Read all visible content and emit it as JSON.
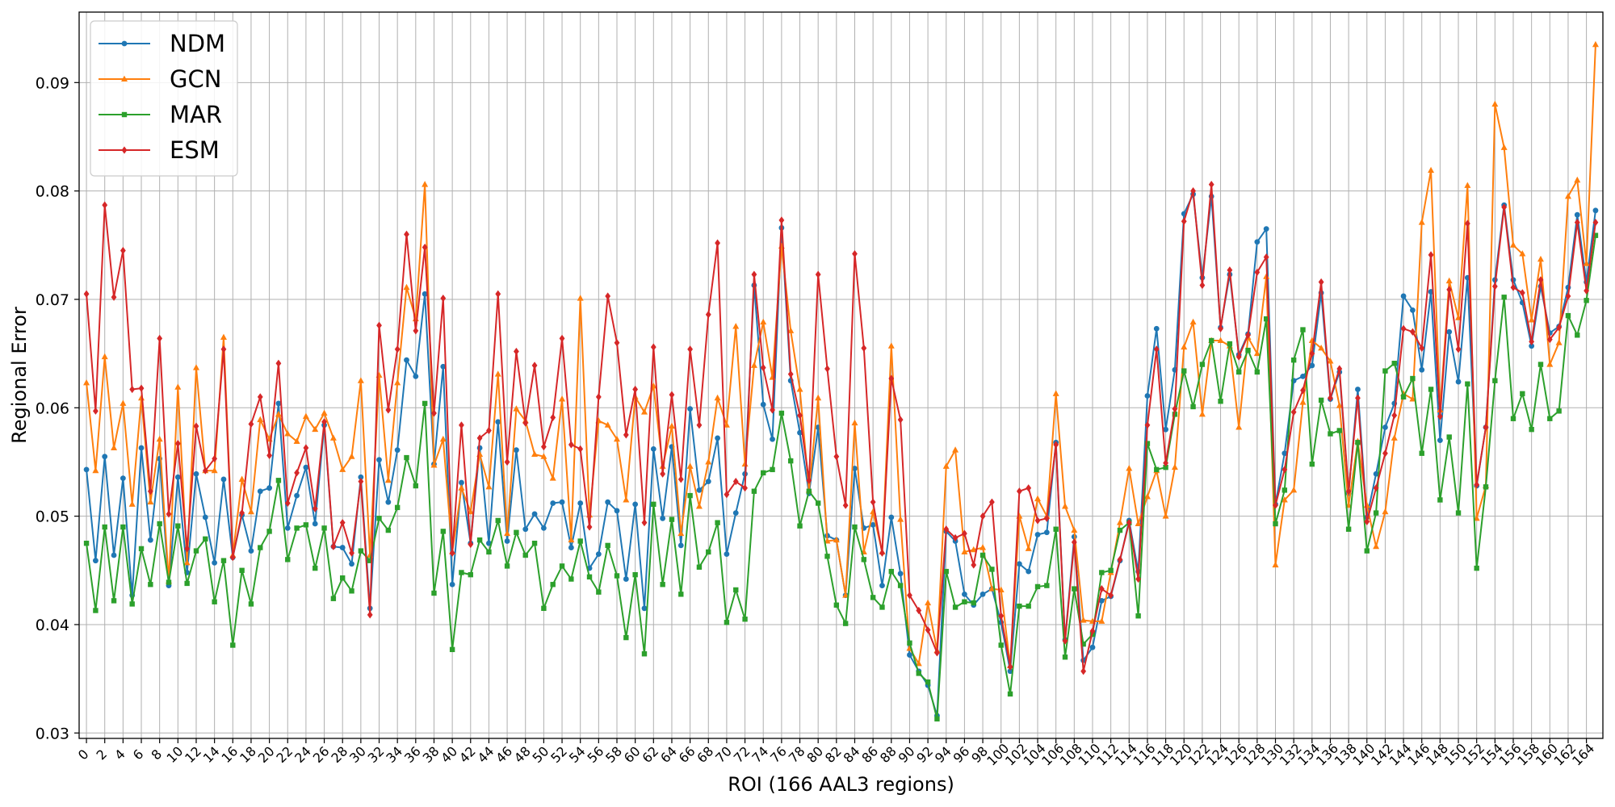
{
  "chart_data": {
    "type": "line",
    "title": "",
    "xlabel": "ROI (166 AAL3 regions)",
    "ylabel": "Regional Error",
    "xlim": [
      -0.8,
      165.8
    ],
    "ylim": [
      0.0295,
      0.0965
    ],
    "yticks": [
      0.03,
      0.04,
      0.05,
      0.06,
      0.07,
      0.08,
      0.09
    ],
    "xticks": [
      0,
      2,
      4,
      6,
      8,
      10,
      12,
      14,
      16,
      18,
      20,
      22,
      24,
      26,
      28,
      30,
      32,
      34,
      36,
      38,
      40,
      42,
      44,
      46,
      48,
      50,
      52,
      54,
      56,
      58,
      60,
      62,
      64,
      66,
      68,
      70,
      72,
      74,
      76,
      78,
      80,
      82,
      84,
      86,
      88,
      90,
      92,
      94,
      96,
      98,
      100,
      102,
      104,
      106,
      108,
      110,
      112,
      114,
      116,
      118,
      120,
      122,
      124,
      126,
      128,
      130,
      132,
      134,
      136,
      138,
      140,
      142,
      144,
      146,
      148,
      150,
      152,
      154,
      156,
      158,
      160,
      162,
      164
    ],
    "x_start": 0,
    "grid": true,
    "legend_position": "upper-left",
    "series": [
      {
        "name": "NDM",
        "color": "#1f77b4",
        "marker": "circle",
        "values": [
          0.0543,
          0.0459,
          0.0555,
          0.0464,
          0.0535,
          0.0427,
          0.0563,
          0.0478,
          0.0553,
          0.0436,
          0.0536,
          0.0448,
          0.0539,
          0.0499,
          0.0457,
          0.0534,
          0.0462,
          0.0501,
          0.0468,
          0.0523,
          0.0526,
          0.0604,
          0.0489,
          0.0519,
          0.0545,
          0.0493,
          0.0584,
          0.0472,
          0.0471,
          0.0456,
          0.0536,
          0.0415,
          0.0552,
          0.0513,
          0.0561,
          0.0644,
          0.0629,
          0.0705,
          0.0548,
          0.0638,
          0.0437,
          0.0531,
          0.0475,
          0.0563,
          0.0475,
          0.0587,
          0.0477,
          0.0561,
          0.0488,
          0.0502,
          0.0489,
          0.0512,
          0.0513,
          0.0471,
          0.0512,
          0.0452,
          0.0465,
          0.0513,
          0.0505,
          0.0442,
          0.0511,
          0.0415,
          0.0562,
          0.0498,
          0.0564,
          0.0473,
          0.0599,
          0.0524,
          0.0532,
          0.0572,
          0.0465,
          0.0503,
          0.0539,
          0.0713,
          0.0603,
          0.0571,
          0.0766,
          0.0625,
          0.0577,
          0.0521,
          0.0582,
          0.0482,
          0.0478,
          0.0427,
          0.0544,
          0.0489,
          0.0492,
          0.0436,
          0.0499,
          0.0447,
          0.0372,
          0.0357,
          0.0344,
          0.0316,
          0.0486,
          0.0477,
          0.0428,
          0.0418,
          0.0428,
          0.0433,
          0.0402,
          0.0357,
          0.0456,
          0.0449,
          0.0483,
          0.0485,
          0.0568,
          0.0386,
          0.0481,
          0.0367,
          0.0379,
          0.0422,
          0.0426,
          0.0459,
          0.0496,
          0.0449,
          0.0611,
          0.0673,
          0.058,
          0.0635,
          0.0779,
          0.0797,
          0.072,
          0.0795,
          0.0674,
          0.0723,
          0.0649,
          0.0668,
          0.0753,
          0.0765,
          0.0511,
          0.0558,
          0.0625,
          0.0629,
          0.0639,
          0.0706,
          0.0608,
          0.0633,
          0.0521,
          0.0617,
          0.0499,
          0.0539,
          0.0582,
          0.0604,
          0.0703,
          0.069,
          0.0635,
          0.0707,
          0.057,
          0.067,
          0.0624,
          0.072,
          0.0528,
          0.0582,
          0.0718,
          0.0787,
          0.0718,
          0.0697,
          0.0657,
          0.0712,
          0.0669,
          0.0675,
          0.0711,
          0.0778,
          0.0716,
          0.0782
        ]
      },
      {
        "name": "GCN",
        "color": "#ff7f0e",
        "marker": "triangle",
        "values": [
          0.0623,
          0.0542,
          0.0647,
          0.0563,
          0.0604,
          0.0511,
          0.0609,
          0.0513,
          0.0571,
          0.044,
          0.0619,
          0.0457,
          0.0637,
          0.0542,
          0.0542,
          0.0665,
          0.0464,
          0.0534,
          0.0504,
          0.0589,
          0.0571,
          0.0594,
          0.0576,
          0.0569,
          0.0592,
          0.058,
          0.0595,
          0.0572,
          0.0543,
          0.0555,
          0.0625,
          0.0464,
          0.063,
          0.0533,
          0.0623,
          0.0711,
          0.0682,
          0.0806,
          0.0547,
          0.0571,
          0.0467,
          0.0526,
          0.0504,
          0.0557,
          0.0527,
          0.0631,
          0.0484,
          0.0599,
          0.0588,
          0.0557,
          0.0555,
          0.0535,
          0.0608,
          0.0478,
          0.0701,
          0.0501,
          0.0588,
          0.0584,
          0.0571,
          0.0515,
          0.061,
          0.0596,
          0.062,
          0.0546,
          0.0583,
          0.0484,
          0.0546,
          0.0509,
          0.055,
          0.0609,
          0.0584,
          0.0675,
          0.0548,
          0.0639,
          0.0679,
          0.0628,
          0.0749,
          0.0671,
          0.0617,
          0.0524,
          0.0609,
          0.0477,
          0.0478,
          0.0427,
          0.0586,
          0.0467,
          0.0504,
          0.0467,
          0.0657,
          0.0497,
          0.0378,
          0.0364,
          0.042,
          0.0376,
          0.0546,
          0.0561,
          0.0467,
          0.0469,
          0.0471,
          0.0433,
          0.0432,
          0.0362,
          0.05,
          0.047,
          0.0516,
          0.05,
          0.0613,
          0.0509,
          0.0487,
          0.0404,
          0.0403,
          0.0403,
          0.0448,
          0.0494,
          0.0544,
          0.0493,
          0.0518,
          0.0542,
          0.05,
          0.0545,
          0.0656,
          0.0679,
          0.0594,
          0.0662,
          0.0662,
          0.0657,
          0.0582,
          0.0665,
          0.065,
          0.0721,
          0.0455,
          0.0515,
          0.0524,
          0.0605,
          0.0662,
          0.0655,
          0.0643,
          0.0602,
          0.051,
          0.0569,
          0.051,
          0.0472,
          0.0504,
          0.0572,
          0.0613,
          0.0608,
          0.0771,
          0.0819,
          0.0598,
          0.0717,
          0.0683,
          0.0805,
          0.0498,
          0.0528,
          0.088,
          0.084,
          0.075,
          0.0742,
          0.0681,
          0.0737,
          0.064,
          0.066,
          0.0795,
          0.081,
          0.0733,
          0.0935
        ]
      },
      {
        "name": "MAR",
        "color": "#2ca02c",
        "marker": "square",
        "values": [
          0.0475,
          0.0413,
          0.049,
          0.0422,
          0.049,
          0.0419,
          0.047,
          0.0437,
          0.0493,
          0.0439,
          0.0491,
          0.0438,
          0.0468,
          0.0479,
          0.0421,
          0.0459,
          0.0381,
          0.045,
          0.0419,
          0.0471,
          0.0486,
          0.0533,
          0.046,
          0.0489,
          0.0492,
          0.0452,
          0.0489,
          0.0424,
          0.0443,
          0.0431,
          0.0468,
          0.0459,
          0.0498,
          0.0487,
          0.0508,
          0.0554,
          0.0528,
          0.0604,
          0.0429,
          0.0486,
          0.0377,
          0.0448,
          0.0446,
          0.0478,
          0.0467,
          0.0496,
          0.0454,
          0.0485,
          0.0464,
          0.0475,
          0.0415,
          0.0437,
          0.0454,
          0.0442,
          0.0477,
          0.0444,
          0.043,
          0.0473,
          0.0445,
          0.0388,
          0.0446,
          0.0373,
          0.0511,
          0.0437,
          0.0497,
          0.0428,
          0.0519,
          0.0453,
          0.0467,
          0.0494,
          0.0402,
          0.0432,
          0.0405,
          0.0523,
          0.054,
          0.0543,
          0.0595,
          0.0551,
          0.0491,
          0.0523,
          0.0512,
          0.0463,
          0.0418,
          0.0401,
          0.049,
          0.046,
          0.0425,
          0.0416,
          0.0449,
          0.0436,
          0.0383,
          0.0355,
          0.0347,
          0.0313,
          0.0449,
          0.0416,
          0.0421,
          0.042,
          0.0464,
          0.0451,
          0.0381,
          0.0336,
          0.0417,
          0.0417,
          0.0435,
          0.0436,
          0.0488,
          0.037,
          0.0433,
          0.0382,
          0.0391,
          0.0448,
          0.045,
          0.0487,
          0.0494,
          0.0408,
          0.0567,
          0.0543,
          0.0545,
          0.0594,
          0.0634,
          0.0601,
          0.064,
          0.0662,
          0.0606,
          0.0659,
          0.0633,
          0.0653,
          0.0633,
          0.0682,
          0.0493,
          0.0524,
          0.0644,
          0.0672,
          0.0548,
          0.0607,
          0.0576,
          0.0579,
          0.0488,
          0.0568,
          0.0468,
          0.0503,
          0.0634,
          0.0641,
          0.061,
          0.0627,
          0.0558,
          0.0617,
          0.0515,
          0.0573,
          0.0503,
          0.0622,
          0.0452,
          0.0527,
          0.0625,
          0.0702,
          0.059,
          0.0613,
          0.058,
          0.064,
          0.059,
          0.0597,
          0.0685,
          0.0667,
          0.0699,
          0.0759
        ]
      },
      {
        "name": "ESM",
        "color": "#d62728",
        "marker": "diamond",
        "values": [
          0.0705,
          0.0597,
          0.0787,
          0.0702,
          0.0745,
          0.0617,
          0.0618,
          0.0523,
          0.0664,
          0.0502,
          0.0567,
          0.047,
          0.0583,
          0.0542,
          0.0553,
          0.0654,
          0.0462,
          0.0503,
          0.0585,
          0.061,
          0.0556,
          0.0641,
          0.0512,
          0.054,
          0.0563,
          0.0507,
          0.0587,
          0.0472,
          0.0494,
          0.0466,
          0.0532,
          0.0409,
          0.0676,
          0.0598,
          0.0654,
          0.076,
          0.0671,
          0.0748,
          0.0595,
          0.0701,
          0.0466,
          0.0584,
          0.0474,
          0.0572,
          0.0579,
          0.0705,
          0.055,
          0.0652,
          0.0586,
          0.0639,
          0.0564,
          0.0591,
          0.0664,
          0.0566,
          0.0562,
          0.049,
          0.061,
          0.0703,
          0.066,
          0.0575,
          0.0617,
          0.0494,
          0.0656,
          0.0539,
          0.0612,
          0.0534,
          0.0654,
          0.0584,
          0.0686,
          0.0752,
          0.052,
          0.0532,
          0.0526,
          0.0723,
          0.0637,
          0.0598,
          0.0773,
          0.0631,
          0.0593,
          0.0533,
          0.0723,
          0.0636,
          0.0555,
          0.051,
          0.0742,
          0.0655,
          0.0513,
          0.0466,
          0.0627,
          0.0589,
          0.0427,
          0.0413,
          0.0395,
          0.0374,
          0.0488,
          0.048,
          0.0484,
          0.0455,
          0.05,
          0.0513,
          0.0408,
          0.0361,
          0.0523,
          0.0526,
          0.0496,
          0.0498,
          0.0566,
          0.0385,
          0.0476,
          0.0357,
          0.0394,
          0.0433,
          0.0427,
          0.046,
          0.0494,
          0.0442,
          0.0584,
          0.0654,
          0.0549,
          0.0599,
          0.0772,
          0.08,
          0.0713,
          0.0806,
          0.0673,
          0.0727,
          0.0647,
          0.0667,
          0.0725,
          0.0739,
          0.051,
          0.0543,
          0.0596,
          0.0616,
          0.065,
          0.0716,
          0.0609,
          0.0636,
          0.0523,
          0.0609,
          0.0495,
          0.0526,
          0.0558,
          0.0593,
          0.0673,
          0.067,
          0.0655,
          0.0741,
          0.0592,
          0.0709,
          0.0654,
          0.077,
          0.0529,
          0.0582,
          0.0712,
          0.0785,
          0.0711,
          0.0706,
          0.0661,
          0.0718,
          0.0663,
          0.0674,
          0.0703,
          0.0771,
          0.0708,
          0.0771
        ]
      }
    ]
  }
}
